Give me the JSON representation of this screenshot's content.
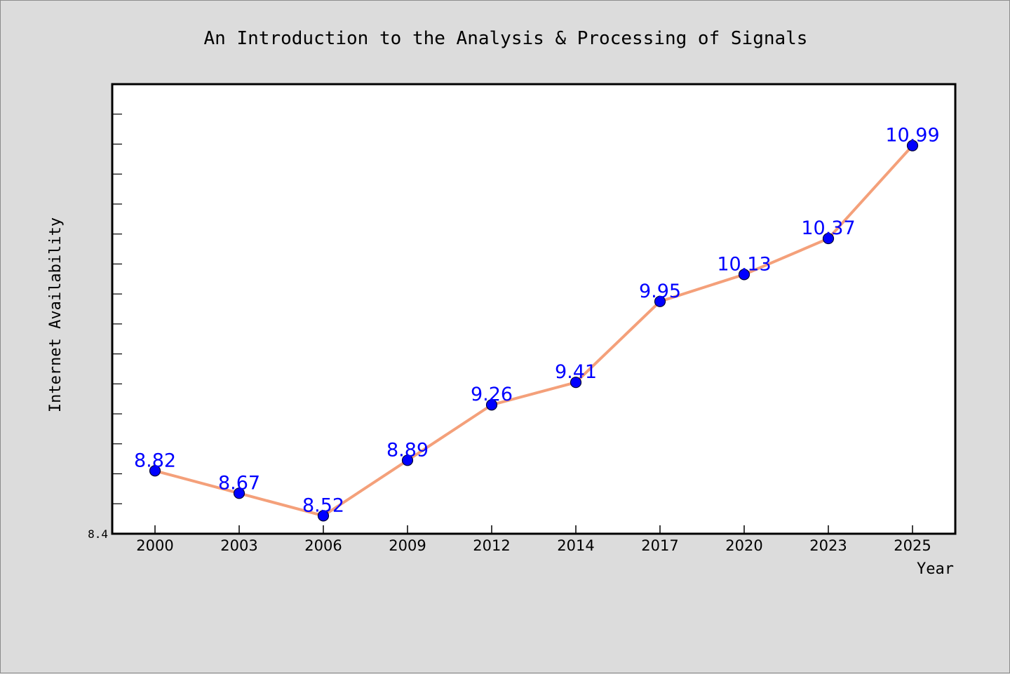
{
  "chart_data": {
    "type": "line",
    "title": "An Introduction to the Analysis & Processing of Signals",
    "xlabel": "Year",
    "ylabel": "Internet Availability",
    "categories": [
      "2000",
      "2003",
      "2006",
      "2009",
      "2012",
      "2014",
      "2017",
      "2020",
      "2023",
      "2025"
    ],
    "series": [
      {
        "values": [
          8.82,
          8.67,
          8.52,
          8.89,
          9.26,
          9.41,
          9.95,
          10.13,
          10.37,
          10.99
        ],
        "data_labels": [
          "8.82",
          "8.67",
          "8.52",
          "8.89",
          "9.26",
          "9.41",
          "9.95",
          "10.13",
          "10.37",
          "10.99"
        ]
      }
    ],
    "ylim": [
      8.4,
      11.4
    ],
    "yticks_labeled": [
      "8.4"
    ],
    "grid": false,
    "legend": "none",
    "colors": {
      "line": "#f4a07a",
      "marker_fill": "#0000ff",
      "marker_edge": "#000033",
      "data_label": "#0000ff",
      "plot_background": "#ffffff",
      "figure_background": "#dcdcdc"
    }
  }
}
